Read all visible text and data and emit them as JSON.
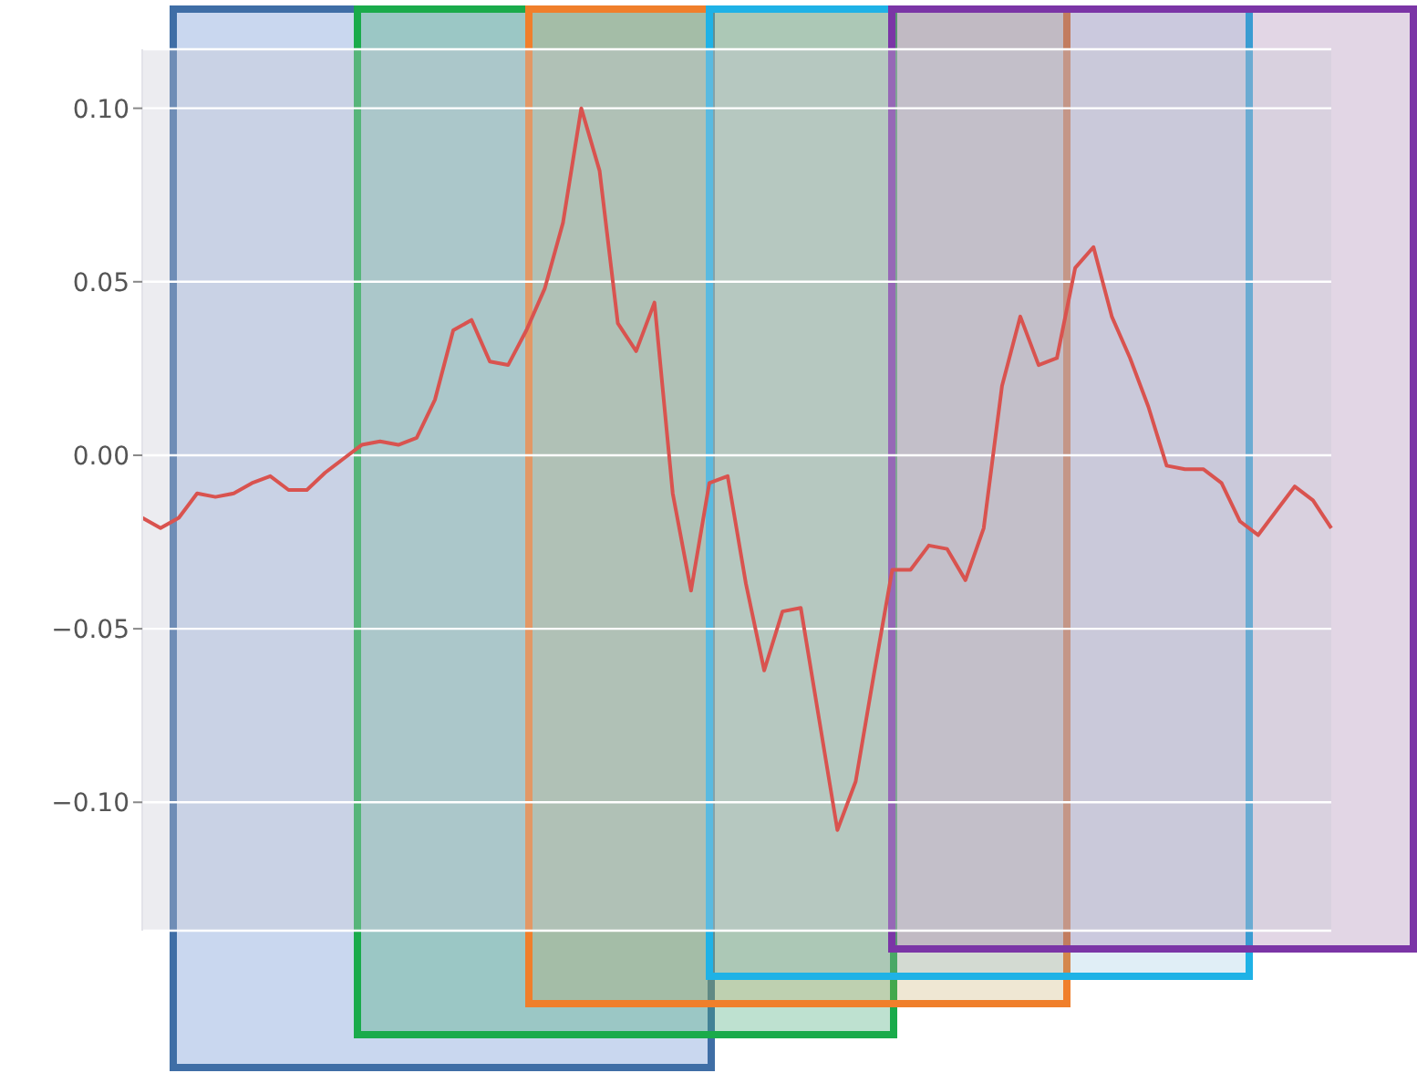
{
  "chart_data": {
    "type": "line",
    "categories": [
      null,
      null,
      null,
      null,
      null,
      null,
      null,
      null,
      null,
      null,
      null,
      null,
      null,
      null,
      null,
      null,
      null,
      null,
      null,
      null,
      null,
      null,
      null,
      null,
      null,
      null,
      null,
      null,
      null,
      null,
      null,
      null,
      null,
      null,
      null,
      null,
      null,
      null,
      null,
      null,
      null,
      null,
      null,
      null,
      null,
      null,
      null,
      null,
      null,
      null,
      null,
      null,
      null,
      null,
      null,
      null,
      null,
      null,
      null,
      null,
      null,
      null,
      null,
      null,
      null,
      null
    ],
    "series": [
      {
        "color": "#d9534f",
        "values": [
          -0.018,
          -0.021,
          -0.018,
          -0.011,
          -0.012,
          -0.011,
          -0.008,
          -0.006,
          -0.01,
          -0.01,
          -0.005,
          -0.001,
          0.003,
          0.004,
          0.003,
          0.005,
          0.016,
          0.036,
          0.039,
          0.027,
          0.026,
          0.036,
          0.048,
          0.067,
          0.1,
          0.082,
          0.038,
          0.03,
          0.044,
          -0.011,
          -0.039,
          -0.008,
          -0.006,
          -0.037,
          -0.062,
          -0.045,
          -0.044,
          -0.076,
          -0.108,
          -0.094,
          -0.063,
          -0.033,
          -0.033,
          -0.026,
          -0.027,
          -0.036,
          -0.021,
          0.02,
          0.04,
          0.026,
          0.028,
          0.054,
          0.06,
          0.04,
          0.028,
          0.014,
          -0.003,
          -0.004,
          -0.004,
          -0.008,
          -0.019,
          -0.023,
          -0.016,
          -0.009,
          -0.013,
          -0.021
        ]
      }
    ],
    "ylim": [
      -0.137,
      0.117
    ],
    "yticks": [
      {
        "value": -0.1,
        "label": "−0.10"
      },
      {
        "value": -0.05,
        "label": "−0.05"
      },
      {
        "value": 0,
        "label": "0.00"
      },
      {
        "value": 0.05,
        "label": "0.05"
      },
      {
        "value": 0.1,
        "label": "0.10"
      }
    ],
    "grid": "y",
    "tick_labels": "y",
    "marker": "none",
    "line_style": "solid",
    "legend": false
  }
}
